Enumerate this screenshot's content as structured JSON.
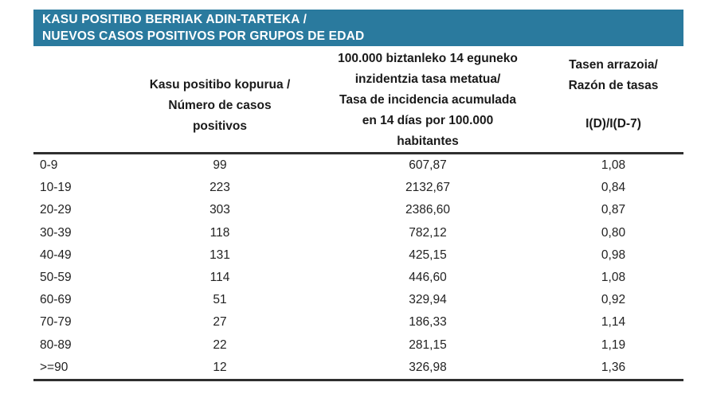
{
  "title": {
    "lines": [
      "KASU POSITIBO BERRIAK ADIN-TARTEKA /",
      "NUEVOS CASOS POSITIVOS POR GRUPOS DE EDAD"
    ]
  },
  "header": {
    "col1": "",
    "col2_lines": [
      "Kasu positibo kopurua /",
      "Número de casos",
      "positivos"
    ],
    "col3_lines": [
      "100.000 biztanleko 14 eguneko",
      "inzidentzia tasa metatua/",
      "Tasa de incidencia acumulada",
      "en 14 días por 100.000",
      "habitantes"
    ],
    "col4_lines": [
      "Tasen arrazoia/",
      "Razón de tasas"
    ],
    "col4_formula": "I(D)/I(D-7)"
  },
  "rows": [
    {
      "age": "0-9",
      "cases": "99",
      "incidence": "607,87",
      "ratio": "1,08"
    },
    {
      "age": "10-19",
      "cases": "223",
      "incidence": "2132,67",
      "ratio": "0,84"
    },
    {
      "age": "20-29",
      "cases": "303",
      "incidence": "2386,60",
      "ratio": "0,87"
    },
    {
      "age": "30-39",
      "cases": "118",
      "incidence": "782,12",
      "ratio": "0,80"
    },
    {
      "age": "40-49",
      "cases": "131",
      "incidence": "425,15",
      "ratio": "0,98"
    },
    {
      "age": "50-59",
      "cases": "114",
      "incidence": "446,60",
      "ratio": "1,08"
    },
    {
      "age": "60-69",
      "cases": "51",
      "incidence": "329,94",
      "ratio": "0,92"
    },
    {
      "age": "70-79",
      "cases": "27",
      "incidence": "186,33",
      "ratio": "1,14"
    },
    {
      "age": "80-89",
      "cases": "22",
      "incidence": "281,15",
      "ratio": "1,19"
    },
    {
      "age": ">=90",
      "cases": "12",
      "incidence": "326,98",
      "ratio": "1,36"
    }
  ],
  "colors": {
    "header_bg": "#2a7a9e",
    "header_text": "#ffffff",
    "body_text": "#222222",
    "rule": "#2f2f2f"
  },
  "chart_data": {
    "type": "table",
    "title": "KASU POSITIBO BERRIAK ADIN-TARTEKA / NUEVOS CASOS POSITIVOS POR GRUPOS DE EDAD",
    "columns": [
      "",
      "Kasu positibo kopurua / Número de casos positivos",
      "100.000 biztanleko 14 eguneko inzidentzia tasa metatua/ Tasa de incidencia acumulada en 14 días por 100.000 habitantes",
      "Tasen arrazoia/ Razón de tasas I(D)/I(D-7)"
    ],
    "rows": [
      [
        "0-9",
        99,
        607.87,
        1.08
      ],
      [
        "10-19",
        223,
        2132.67,
        0.84
      ],
      [
        "20-29",
        303,
        2386.6,
        0.87
      ],
      [
        "30-39",
        118,
        782.12,
        0.8
      ],
      [
        "40-49",
        131,
        425.15,
        0.98
      ],
      [
        "50-59",
        114,
        446.6,
        1.08
      ],
      [
        "60-69",
        51,
        329.94,
        0.92
      ],
      [
        "70-79",
        27,
        186.33,
        1.14
      ],
      [
        "80-89",
        22,
        281.15,
        1.19
      ],
      [
        ">=90",
        12,
        326.98,
        1.36
      ]
    ]
  }
}
